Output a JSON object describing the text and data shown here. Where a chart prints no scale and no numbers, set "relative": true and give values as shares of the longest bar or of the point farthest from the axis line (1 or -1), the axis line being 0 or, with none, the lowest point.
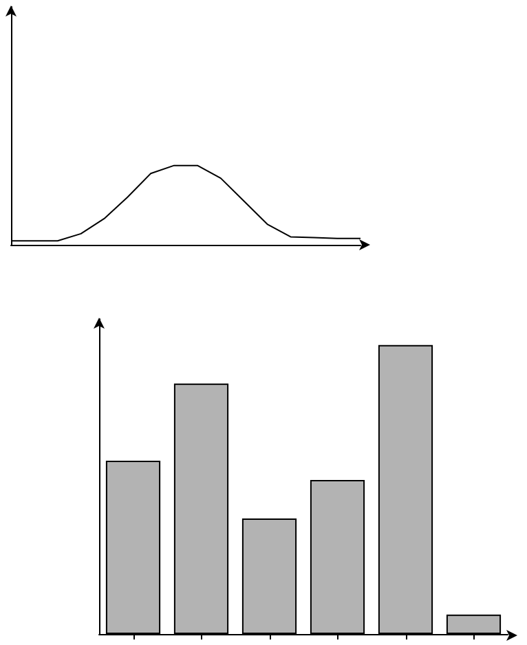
{
  "chart_data": [
    {
      "type": "line",
      "relative": true,
      "categories": [
        null,
        null,
        null,
        null,
        null,
        null,
        null,
        null,
        null,
        null,
        null,
        null,
        null,
        null,
        null,
        null
      ],
      "series": [
        {
          "color": "#000000",
          "values": [
            0.05,
            0.05,
            0.05,
            0.14,
            0.33,
            0.6,
            0.9,
            1,
            1,
            0.84,
            0.55,
            0.26,
            0.1,
            0.09,
            0.08,
            0.08
          ]
        }
      ],
      "marker": "none",
      "line_style": "solid",
      "grid": false
    },
    {
      "type": "bar",
      "relative": true,
      "categories": [
        null,
        null,
        null,
        null,
        null,
        null
      ],
      "series": [
        {
          "color": "#b3b3b3",
          "values": [
            0.6,
            0.867,
            0.4,
            0.533,
            1,
            0.067
          ]
        }
      ],
      "grid": false
    }
  ]
}
